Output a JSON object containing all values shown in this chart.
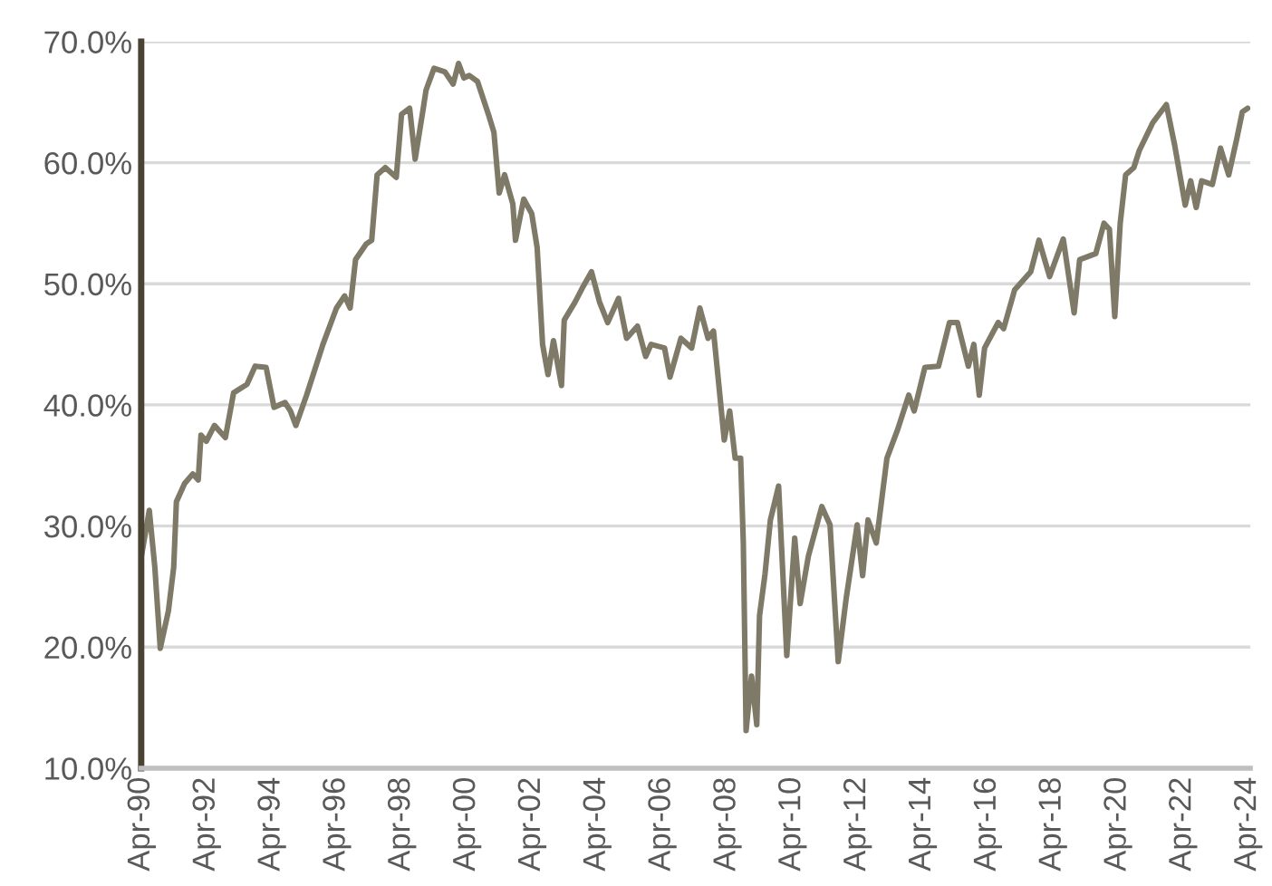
{
  "chart_data": {
    "type": "line",
    "x": [
      "1990-04",
      "1990-07",
      "1990-09",
      "1990-11",
      "1991-02",
      "1991-04",
      "1991-05",
      "1991-08",
      "1991-11",
      "1992-01",
      "1992-02",
      "1992-04",
      "1992-07",
      "1992-11",
      "1993-02",
      "1993-07",
      "1993-10",
      "1994-02",
      "1994-05",
      "1994-09",
      "1994-11",
      "1995-01",
      "1995-05",
      "1995-11",
      "1996-04",
      "1996-07",
      "1996-09",
      "1996-11",
      "1997-03",
      "1997-05",
      "1997-07",
      "1997-10",
      "1998-02",
      "1998-04",
      "1998-07",
      "1998-09",
      "1998-12",
      "1999-01",
      "1999-04",
      "1999-08",
      "1999-11",
      "2000-01",
      "2000-03",
      "2000-05",
      "2000-08",
      "2000-12",
      "2001-02",
      "2001-04",
      "2001-06",
      "2001-09",
      "2001-10",
      "2002-01",
      "2002-04",
      "2002-06",
      "2002-08",
      "2002-10",
      "2002-12",
      "2003-03",
      "2003-04",
      "2003-08",
      "2003-11",
      "2004-02",
      "2004-05",
      "2004-08",
      "2004-12",
      "2005-03",
      "2005-07",
      "2005-10",
      "2005-12",
      "2006-05",
      "2006-07",
      "2006-11",
      "2007-03",
      "2007-06",
      "2007-09",
      "2007-11",
      "2008-01",
      "2008-03",
      "2008-05",
      "2008-07",
      "2008-09",
      "2008-10",
      "2008-11",
      "2009-01",
      "2009-03",
      "2009-04",
      "2009-06",
      "2009-08",
      "2009-11",
      "2010-02",
      "2010-05",
      "2010-07",
      "2010-10",
      "2011-03",
      "2011-06",
      "2011-09",
      "2011-12",
      "2012-04",
      "2012-06",
      "2012-08",
      "2012-11",
      "2013-03",
      "2013-07",
      "2013-11",
      "2014-01",
      "2014-05",
      "2014-10",
      "2015-02",
      "2015-05",
      "2015-09",
      "2015-11",
      "2016-01",
      "2016-03",
      "2016-08",
      "2016-10",
      "2017-02",
      "2017-08",
      "2017-11",
      "2018-03",
      "2018-08",
      "2018-12",
      "2019-02",
      "2019-08",
      "2019-11",
      "2020-01",
      "2020-03",
      "2020-05",
      "2020-07",
      "2020-10",
      "2020-12",
      "2021-05",
      "2021-10",
      "2022-01",
      "2022-05",
      "2022-07",
      "2022-09",
      "2022-11",
      "2023-03",
      "2023-06",
      "2023-09",
      "2023-12",
      "2024-02",
      "2024-04"
    ],
    "series": [
      {
        "color": "#7f7a68",
        "values": [
          27.4,
          31.3,
          26.6,
          19.9,
          23.0,
          26.6,
          32.0,
          33.5,
          34.3,
          33.8,
          37.5,
          37.0,
          38.3,
          37.3,
          41.0,
          41.7,
          43.2,
          43.1,
          39.8,
          40.2,
          39.5,
          38.3,
          40.8,
          45.0,
          48.0,
          49.0,
          48.0,
          52.0,
          53.3,
          53.6,
          59.0,
          59.6,
          58.8,
          64.0,
          64.5,
          60.3,
          64.5,
          66.0,
          67.8,
          67.5,
          66.5,
          68.2,
          67.0,
          67.2,
          66.7,
          64.0,
          62.5,
          57.5,
          59.0,
          56.6,
          53.6,
          57.0,
          55.8,
          53.0,
          45.0,
          42.5,
          45.3,
          41.6,
          47.0,
          48.5,
          49.8,
          51.0,
          48.5,
          46.8,
          48.8,
          45.5,
          46.5,
          44.0,
          45.0,
          44.7,
          42.3,
          45.5,
          44.7,
          48.0,
          45.5,
          46.1,
          41.6,
          37.1,
          39.5,
          35.6,
          35.6,
          28.6,
          13.1,
          17.6,
          13.6,
          22.6,
          26.0,
          30.5,
          33.3,
          19.3,
          29.0,
          23.6,
          27.5,
          31.6,
          30.1,
          18.8,
          24.1,
          30.1,
          25.9,
          30.5,
          28.6,
          35.6,
          38.0,
          40.8,
          39.5,
          43.1,
          43.2,
          46.8,
          46.8,
          43.2,
          45.0,
          40.8,
          44.7,
          46.8,
          46.3,
          49.5,
          51.0,
          53.6,
          50.6,
          53.7,
          47.6,
          52.0,
          52.5,
          55.0,
          54.5,
          47.3,
          55.0,
          59.0,
          59.6,
          61.0,
          63.3,
          64.8,
          61.5,
          56.5,
          58.5,
          56.3,
          58.5,
          58.2,
          61.2,
          59.0,
          62.0,
          64.2,
          64.5
        ]
      }
    ],
    "xlim": [
      "1990-04",
      "2024-05"
    ],
    "xticks": [
      {
        "value": "1990-04",
        "label": "Apr-90"
      },
      {
        "value": "1992-04",
        "label": "Apr-92"
      },
      {
        "value": "1994-04",
        "label": "Apr-94"
      },
      {
        "value": "1996-04",
        "label": "Apr-96"
      },
      {
        "value": "1998-04",
        "label": "Apr-98"
      },
      {
        "value": "2000-04",
        "label": "Apr-00"
      },
      {
        "value": "2002-04",
        "label": "Apr-02"
      },
      {
        "value": "2004-04",
        "label": "Apr-04"
      },
      {
        "value": "2006-04",
        "label": "Apr-06"
      },
      {
        "value": "2008-04",
        "label": "Apr-08"
      },
      {
        "value": "2010-04",
        "label": "Apr-10"
      },
      {
        "value": "2012-04",
        "label": "Apr-12"
      },
      {
        "value": "2014-04",
        "label": "Apr-14"
      },
      {
        "value": "2016-04",
        "label": "Apr-16"
      },
      {
        "value": "2018-04",
        "label": "Apr-18"
      },
      {
        "value": "2020-04",
        "label": "Apr-20"
      },
      {
        "value": "2022-04",
        "label": "Apr-22"
      },
      {
        "value": "2024-04",
        "label": "Apr-24"
      }
    ],
    "ylim": [
      10,
      70
    ],
    "yticks": [
      {
        "value": 10,
        "label": "10.0%"
      },
      {
        "value": 20,
        "label": "20.0%"
      },
      {
        "value": 30,
        "label": "30.0%"
      },
      {
        "value": 40,
        "label": "40.0%"
      },
      {
        "value": 50,
        "label": "50.0%"
      },
      {
        "value": 60,
        "label": "60.0%"
      },
      {
        "value": 70,
        "label": "70.0%"
      }
    ],
    "grid": "y",
    "legend": false,
    "marker": "none",
    "line_style": "solid"
  }
}
